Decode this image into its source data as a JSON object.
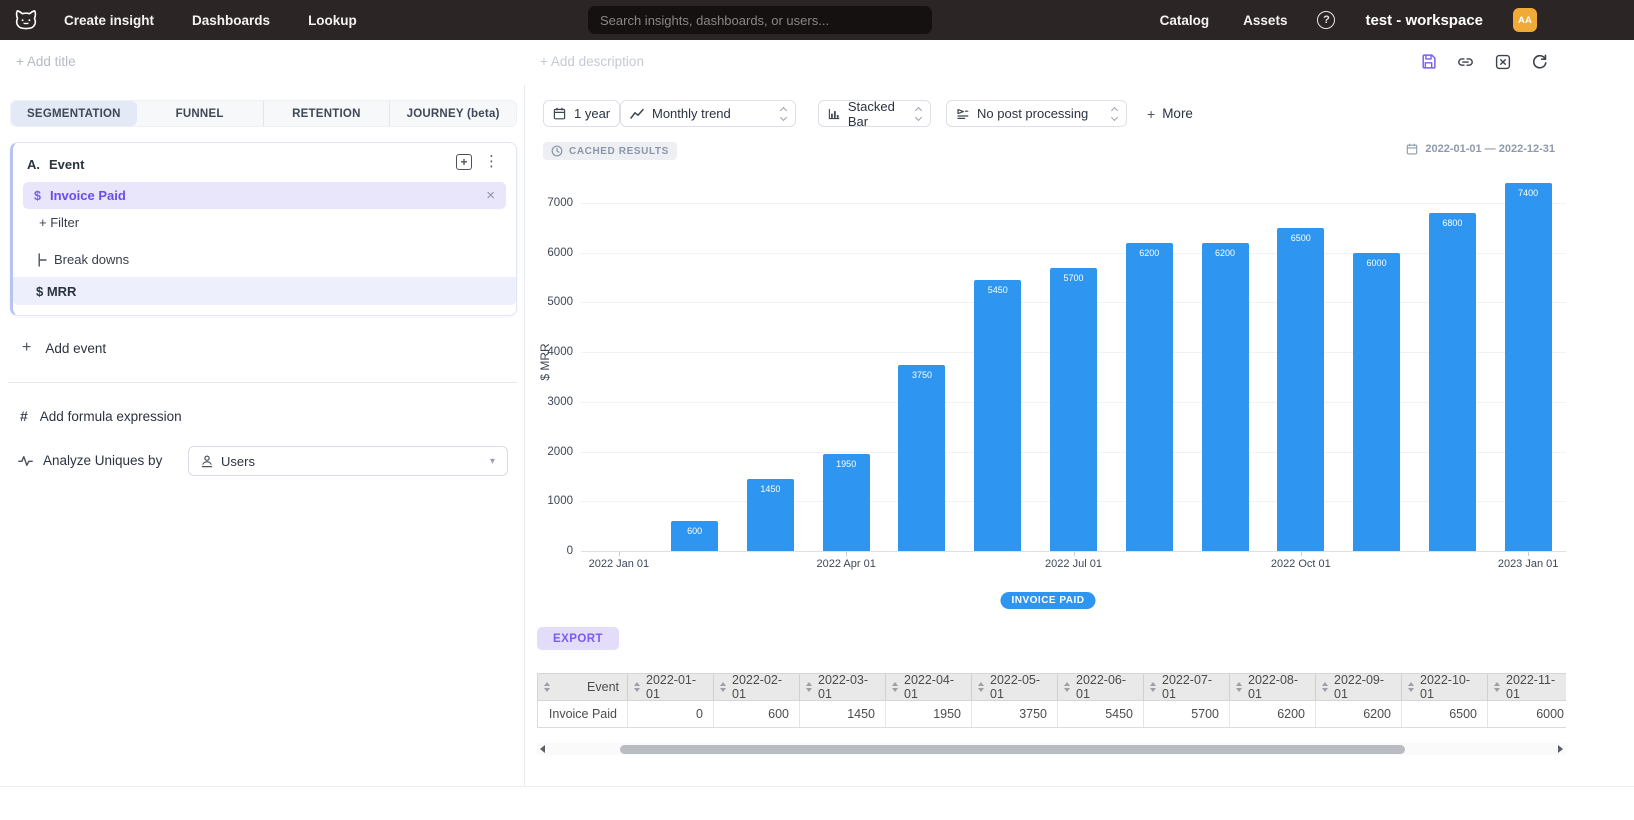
{
  "nav": {
    "links": [
      "Create insight",
      "Dashboards",
      "Lookup"
    ],
    "search_placeholder": "Search insights, dashboards, or users...",
    "right_links": [
      "Catalog",
      "Assets"
    ],
    "workspace": "test - workspace",
    "avatar_initials": "AA",
    "brand_color": "#2b2525",
    "avatar_color": "#efaa38"
  },
  "header": {
    "add_title": "+ Add title",
    "add_description": "+ Add description"
  },
  "left_panel": {
    "tabs": [
      {
        "label": "SEGMENTATION",
        "active": true
      },
      {
        "label": "FUNNEL",
        "active": false
      },
      {
        "label": "RETENTION",
        "active": false
      },
      {
        "label": "JOURNEY (beta)",
        "active": false
      }
    ],
    "event_card": {
      "prefix": "A.",
      "title": "Event",
      "event_prefix": "$",
      "event_name": "Invoice Paid",
      "filter_label": "+ Filter",
      "breakdowns_label": "Break downs",
      "breakdown_value": "$ MRR"
    },
    "add_event_label": "Add event",
    "add_formula_label": "Add formula expression",
    "analyze_label": "Analyze Uniques by",
    "analyze_value": "Users"
  },
  "toolbar": {
    "period": "1 year",
    "trend": "Monthly trend",
    "chart_type": "Stacked Bar",
    "post_processing": "No post processing",
    "more_label": "More",
    "more_plus": "+"
  },
  "results": {
    "cached_badge": "CACHED RESULTS",
    "date_range": "2022-01-01 — 2022-12-31",
    "export_label": "EXPORT"
  },
  "chart_data": {
    "type": "bar",
    "title": "",
    "xlabel": "",
    "ylabel": "$ MRR",
    "ylim": [
      0,
      7000
    ],
    "y_ticks": [
      0,
      1000,
      2000,
      3000,
      4000,
      5000,
      6000,
      7000
    ],
    "grid": true,
    "legend_position": "bottom",
    "x": [
      "2022-01-01",
      "2022-02-01",
      "2022-03-01",
      "2022-04-01",
      "2022-05-01",
      "2022-06-01",
      "2022-07-01",
      "2022-08-01",
      "2022-09-01",
      "2022-10-01",
      "2022-11-01",
      "2022-12-01",
      "2023-01-01"
    ],
    "x_axis_labels": [
      {
        "index": 0,
        "label": "2022 Jan 01"
      },
      {
        "index": 3,
        "label": "2022 Apr 01"
      },
      {
        "index": 6,
        "label": "2022 Jul 01"
      },
      {
        "index": 9,
        "label": "2022 Oct 01"
      },
      {
        "index": 12,
        "label": "2023 Jan 01"
      }
    ],
    "series": [
      {
        "name": "INVOICE PAID",
        "color": "#2e96f0",
        "values": [
          0,
          600,
          1450,
          1950,
          3750,
          5450,
          5700,
          6200,
          6200,
          6500,
          6000,
          6800,
          7400
        ]
      }
    ]
  },
  "table": {
    "columns": [
      "Event",
      "2022-01-01",
      "2022-02-01",
      "2022-03-01",
      "2022-04-01",
      "2022-05-01",
      "2022-06-01",
      "2022-07-01",
      "2022-08-01",
      "2022-09-01",
      "2022-10-01",
      "2022-11-01"
    ],
    "rows": [
      {
        "event": "Invoice Paid",
        "values": [
          "0",
          "600",
          "1450",
          "1950",
          "3750",
          "5450",
          "5700",
          "6200",
          "6200",
          "6500",
          "6000"
        ]
      }
    ]
  },
  "icons": {
    "help": "?",
    "plus": "+",
    "kebab": "⋮",
    "close": "×",
    "caret_down": "▾",
    "cached_clock": "clock",
    "calendar": "calendar",
    "trend": "line-trend",
    "stacked_bar": "stacked-bar",
    "post_processing": "document-lines",
    "sort": "up-down-triangles",
    "accent_purple": "#7a5af5"
  }
}
